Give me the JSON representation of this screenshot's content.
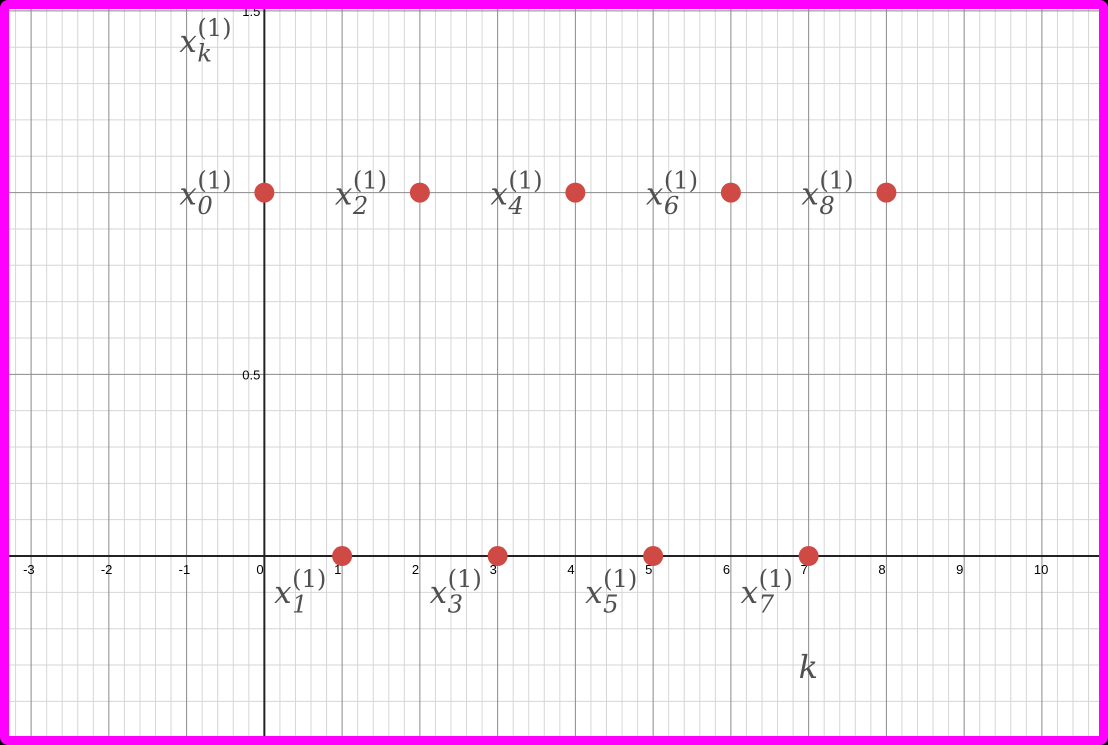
{
  "chart_data": {
    "type": "scatter",
    "x_range": [
      -3.4,
      10.85
    ],
    "y_range": [
      -0.52,
      1.53
    ],
    "x_ticks": [
      -3,
      -2,
      -1,
      0,
      1,
      2,
      3,
      4,
      5,
      6,
      7,
      8,
      9,
      10
    ],
    "x_tick_labels": [
      "-3",
      "-2",
      "-1",
      "0",
      "1",
      "2",
      "3",
      "4",
      "5",
      "6",
      "7",
      "8",
      "9",
      "10"
    ],
    "y_ticks": [
      0.5,
      1.5
    ],
    "y_tick_labels": [
      "0.5",
      "1.5"
    ],
    "grid": true,
    "minor_grid_step_x": 0.2,
    "minor_grid_step_y": 0.1,
    "point_color": "#d04a45",
    "frame_color": "#ff00ff",
    "series": [
      {
        "x": [
          0,
          1,
          2,
          3,
          4,
          5,
          6,
          7,
          8
        ],
        "y": [
          1,
          0,
          1,
          0,
          1,
          0,
          1,
          0,
          1
        ]
      }
    ],
    "point_labels": [
      {
        "base": "x",
        "sub": "0",
        "sup": "(1)"
      },
      {
        "base": "x",
        "sub": "1",
        "sup": "(1)"
      },
      {
        "base": "x",
        "sub": "2",
        "sup": "(1)"
      },
      {
        "base": "x",
        "sub": "3",
        "sup": "(1)"
      },
      {
        "base": "x",
        "sub": "4",
        "sup": "(1)"
      },
      {
        "base": "x",
        "sub": "5",
        "sup": "(1)"
      },
      {
        "base": "x",
        "sub": "6",
        "sup": "(1)"
      },
      {
        "base": "x",
        "sub": "7",
        "sup": "(1)"
      },
      {
        "base": "x",
        "sub": "8",
        "sup": "(1)"
      }
    ],
    "ylabel": {
      "base": "x",
      "sub": "k",
      "sup": "(1)"
    },
    "xlabel": "k"
  }
}
